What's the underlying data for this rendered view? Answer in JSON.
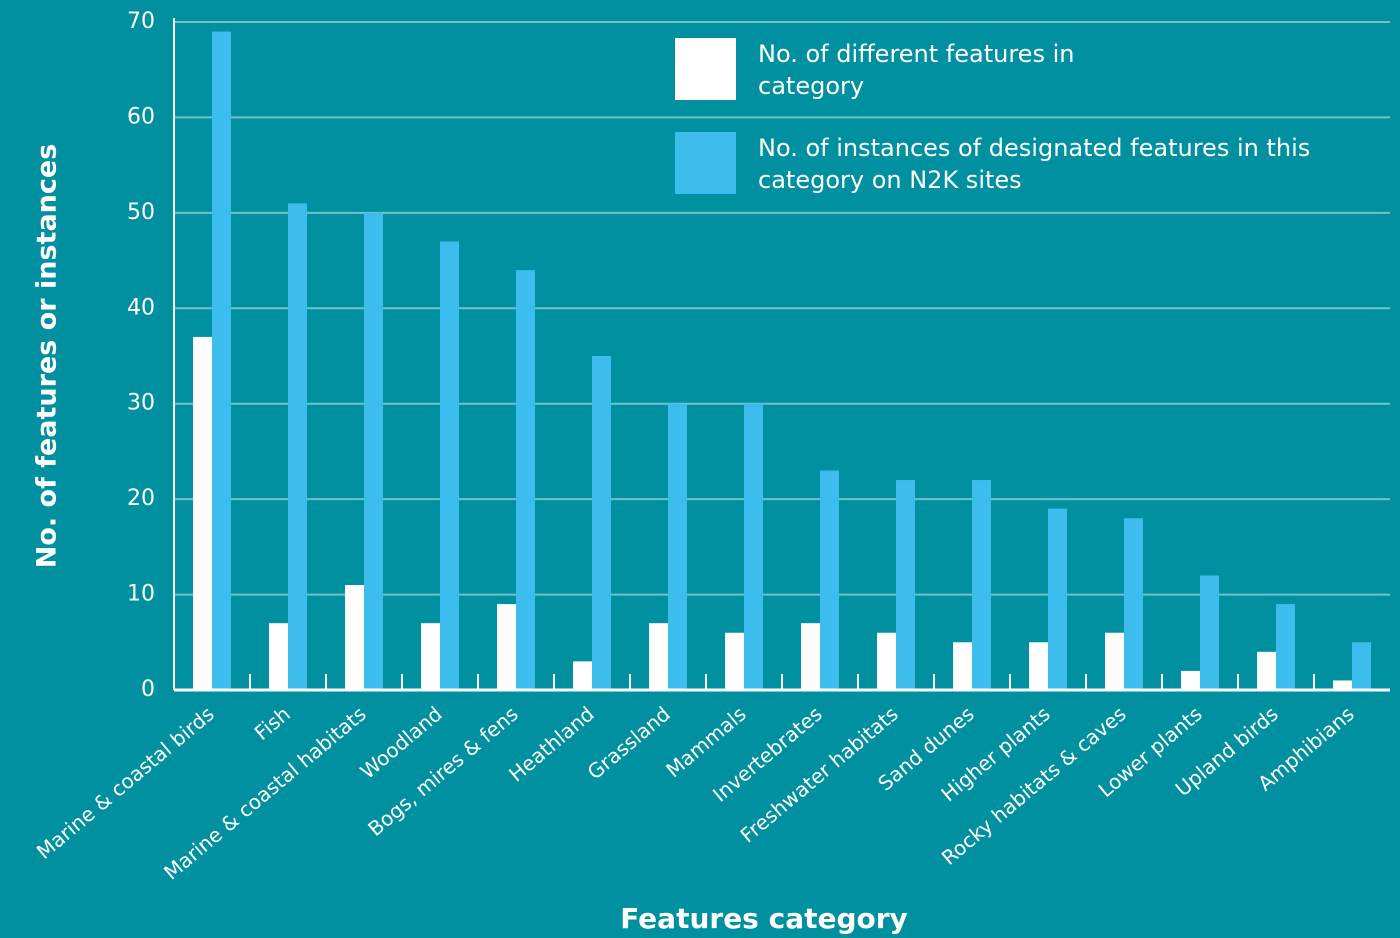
{
  "chart_data": {
    "type": "bar",
    "x_label": "Features category",
    "y_label": "No. of features or instances",
    "categories": [
      "Marine & coastal birds",
      "Fish",
      "Marine & coastal habitats",
      "Woodland",
      "Bogs, mires & fens",
      "Heathland",
      "Grassland",
      "Mammals",
      "Invertebrates",
      "Freshwater habitats",
      "Sand dunes",
      "Higher plants",
      "Rocky habitats & caves",
      "Lower plants",
      "Upland birds",
      "Amphibians"
    ],
    "series": [
      {
        "name": "No. of different features in category",
        "color": "#ffffff",
        "values": [
          37,
          7,
          11,
          7,
          9,
          3,
          7,
          6,
          7,
          6,
          5,
          5,
          6,
          2,
          4,
          1
        ]
      },
      {
        "name": "No. of instances of designated features in this category on N2K sites",
        "color": "#3dbdee",
        "values": [
          69,
          51,
          50,
          47,
          44,
          35,
          30,
          30,
          23,
          22,
          22,
          19,
          18,
          12,
          9,
          5
        ]
      }
    ],
    "ylim": [
      0,
      70
    ],
    "yticks": [
      0,
      10,
      20,
      30,
      40,
      50,
      60,
      70
    ],
    "grid": true,
    "legend": "top-right"
  }
}
